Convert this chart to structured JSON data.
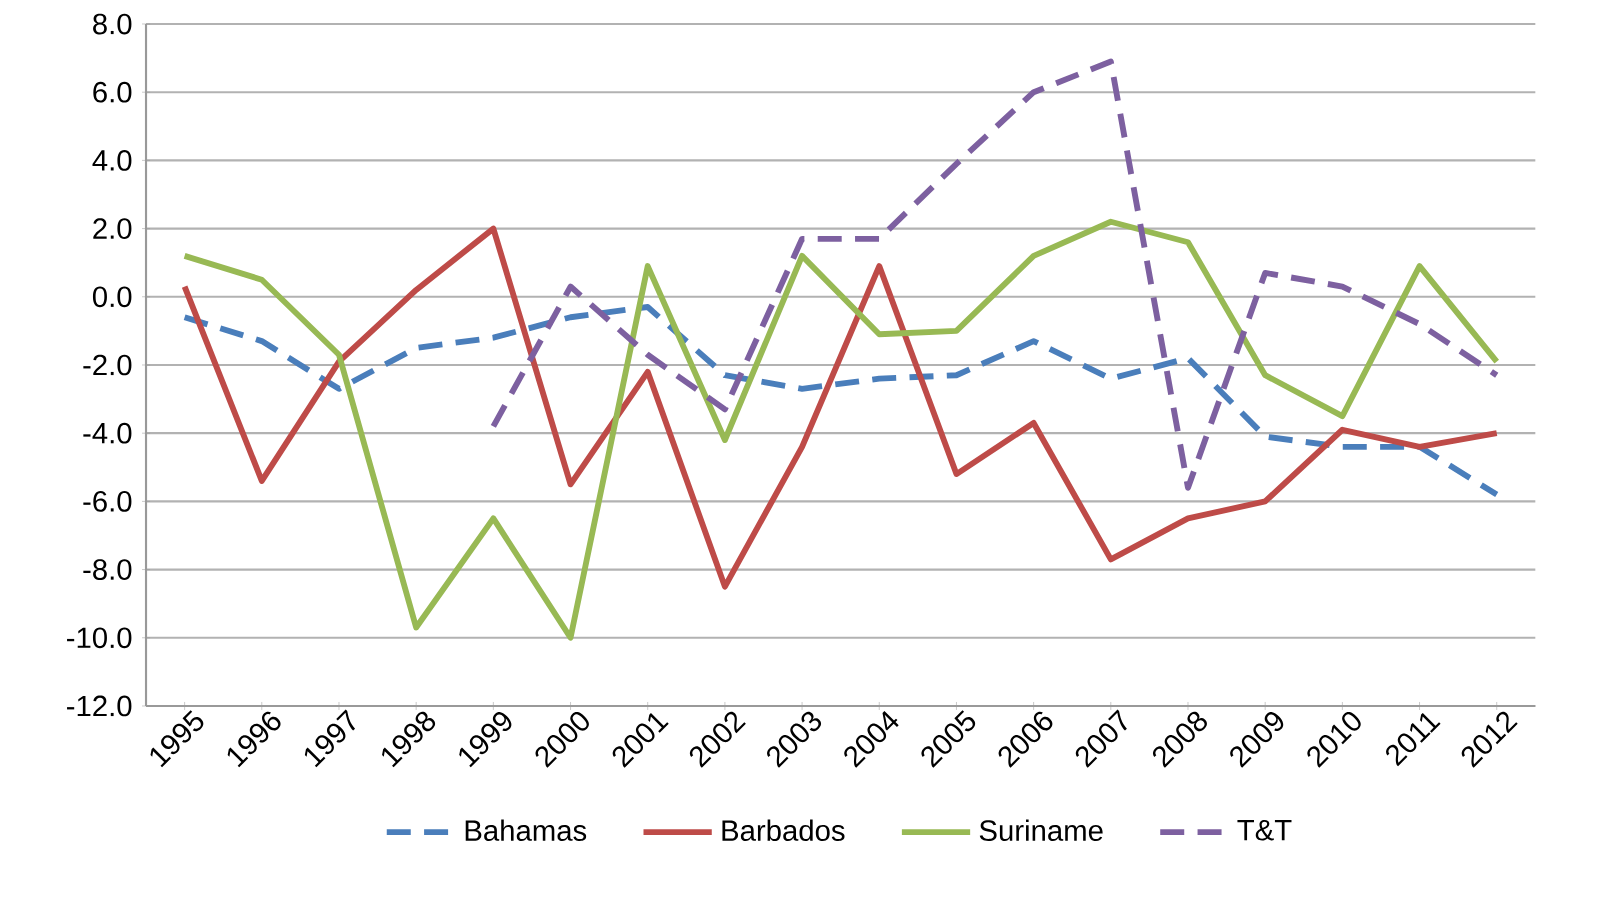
{
  "chart_data": {
    "type": "line",
    "categories": [
      "1995",
      "1996",
      "1997",
      "1998",
      "1999",
      "2000",
      "2001",
      "2002",
      "2003",
      "2004",
      "2005",
      "2006",
      "2007",
      "2008",
      "2009",
      "2010",
      "2011",
      "2012"
    ],
    "series": [
      {
        "name": "Bahamas",
        "color": "#4a7ebb",
        "line_style": "dashed",
        "values": [
          -0.6,
          -1.3,
          -2.7,
          -1.5,
          -1.2,
          -0.6,
          -0.3,
          -2.3,
          -2.7,
          -2.4,
          -2.3,
          -1.3,
          -2.4,
          -1.8,
          -4.1,
          -4.4,
          -4.4,
          -5.8
        ]
      },
      {
        "name": "Barbados",
        "color": "#be4b48",
        "line_style": "solid",
        "values": [
          0.3,
          -5.4,
          -1.9,
          0.2,
          2.0,
          -5.5,
          -2.2,
          -8.5,
          -4.4,
          0.9,
          -5.2,
          -3.7,
          -7.7,
          -6.5,
          -6.0,
          -3.9,
          -4.4,
          -4.0
        ]
      },
      {
        "name": "Suriname",
        "color": "#98b954",
        "line_style": "solid",
        "values": [
          1.2,
          0.5,
          -1.7,
          -9.7,
          -6.5,
          -10.0,
          0.9,
          -4.2,
          1.2,
          -1.1,
          -1.0,
          1.2,
          2.2,
          1.6,
          -2.3,
          -3.5,
          0.9,
          -1.9
        ]
      },
      {
        "name": "T&T",
        "color": "#7d60a0",
        "line_style": "dashed",
        "values": [
          null,
          null,
          null,
          null,
          -3.8,
          0.3,
          -1.7,
          -3.3,
          1.7,
          1.7,
          3.9,
          6.0,
          6.9,
          -5.6,
          0.7,
          0.3,
          -0.8,
          -2.3
        ]
      }
    ],
    "ylim": [
      -12,
      8
    ],
    "yticks": [
      {
        "value": -12,
        "label": "-12.0"
      },
      {
        "value": -10,
        "label": "-10.0"
      },
      {
        "value": -8,
        "label": "-8.0"
      },
      {
        "value": -6,
        "label": "-6.0"
      },
      {
        "value": -4,
        "label": "-4.0"
      },
      {
        "value": -2,
        "label": "-2.0"
      },
      {
        "value": 0,
        "label": "0.0"
      },
      {
        "value": 2,
        "label": "2.0"
      },
      {
        "value": 4,
        "label": "4.0"
      },
      {
        "value": 6,
        "label": "6.0"
      },
      {
        "value": 8,
        "label": "8.0"
      }
    ],
    "grid": "y",
    "legend": "bottom",
    "marker": "none"
  }
}
